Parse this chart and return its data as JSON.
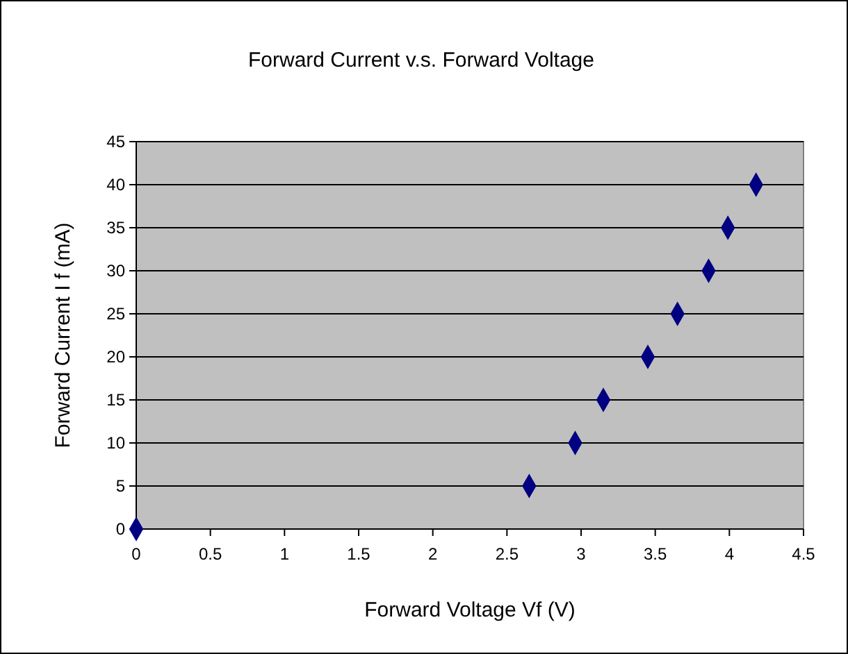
{
  "chart_data": {
    "type": "scatter",
    "title": "Forward Current v.s. Forward Voltage",
    "xlabel": "Forward Voltage Vf (V)",
    "ylabel": "Forward Current I f  (mA)",
    "x": [
      0,
      2.65,
      2.96,
      3.15,
      3.45,
      3.65,
      3.86,
      3.99,
      4.18
    ],
    "values": [
      0,
      5,
      10,
      15,
      20,
      25,
      30,
      35,
      40
    ],
    "color": "#000080",
    "marker": "diamond",
    "grid": "y",
    "xlim": [
      0,
      4.5
    ],
    "xticks": [
      0,
      0.5,
      1,
      1.5,
      2,
      2.5,
      3,
      3.5,
      4,
      4.5
    ],
    "ylim": [
      0,
      45
    ],
    "yticks": [
      0,
      5,
      10,
      15,
      20,
      25,
      30,
      35,
      40,
      45
    ]
  }
}
